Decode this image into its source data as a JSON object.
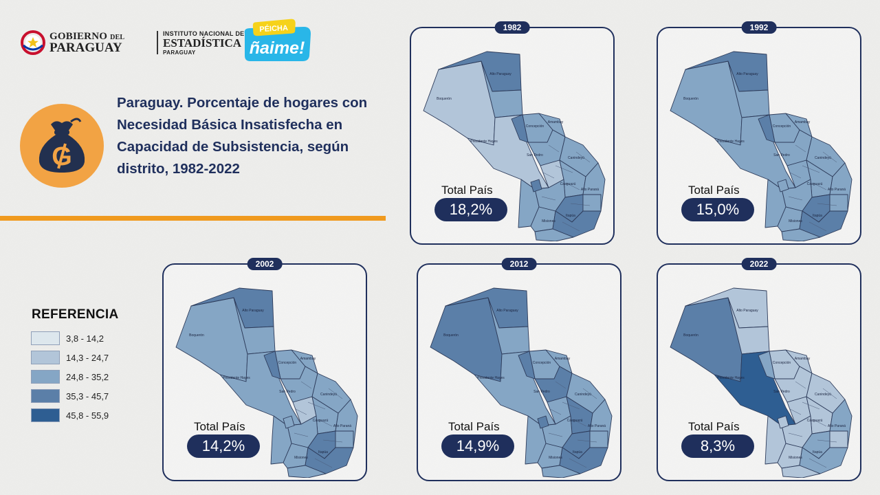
{
  "header": {
    "gov_line1": "GOBIERNO",
    "gov_line1_small": "DEL",
    "gov_line2": "PARAGUAY",
    "ine_line1": "INSTITUTO NACIONAL DE",
    "ine_line2": "ESTADÍSTICA",
    "ine_line3": "PARAGUAY",
    "campaign_top": "PÉICHA",
    "campaign_main": "ñaime!"
  },
  "title": "Paraguay. Porcentaje de hogares con Necesidad Básica Insatisfecha en Capacidad de Subsistencia, según distrito, 1982-2022",
  "legend": {
    "title": "REFERENCIA",
    "items": [
      {
        "label": "3,8 - 14,2",
        "color": "#dde7ed"
      },
      {
        "label": "14,3 - 24,7",
        "color": "#b2c5d9"
      },
      {
        "label": "24,8 - 35,2",
        "color": "#85a6c5"
      },
      {
        "label": "35,3 - 45,7",
        "color": "#5b7fa8"
      },
      {
        "label": "45,8 - 55,9",
        "color": "#2e5e92"
      }
    ]
  },
  "total_label": "Total País",
  "panels": [
    {
      "year": "1982",
      "total": "18,2%",
      "classes": [
        1,
        3,
        2,
        1,
        2,
        3,
        2,
        2,
        2,
        1,
        2,
        2,
        2,
        3,
        2,
        2,
        3,
        2,
        3,
        2
      ],
      "dept_labels": [
        "Boquerón",
        "Alto Paraguay",
        "Presidente Hayes",
        "Concepción",
        "Amambay",
        "San Pedro",
        "Canindeyú",
        "Caaguazú",
        "Alto Paraná",
        "Itapúa",
        "Misiones"
      ]
    },
    {
      "year": "1992",
      "total": "15,0%",
      "classes": [
        2,
        3,
        2,
        2,
        2,
        3,
        2,
        2,
        2,
        2,
        2,
        2,
        2,
        3,
        2,
        2,
        3,
        2,
        2,
        2
      ],
      "dept_labels": [
        "Boquerón",
        "Alto Paraguay",
        "Presidente Hayes",
        "Concepción",
        "Amambay",
        "San Pedro",
        "Canindeyú",
        "Caaguazú",
        "Alto Paraná",
        "Itapúa",
        "Misiones"
      ]
    },
    {
      "year": "2002",
      "total": "14,2%",
      "classes": [
        2,
        3,
        2,
        2,
        2,
        3,
        2,
        2,
        2,
        1,
        2,
        2,
        2,
        3,
        2,
        2,
        3,
        2,
        2,
        2
      ],
      "dept_labels": [
        "Boquerón",
        "Alto Paraguay",
        "Presidente Hayes",
        "Concepción",
        "Amambay",
        "San Pedro",
        "Canindeyú",
        "Caaguazú",
        "Alto Paraná",
        "Itapúa",
        "Misiones"
      ]
    },
    {
      "year": "2012",
      "total": "14,9%",
      "classes": [
        3,
        3,
        2,
        2,
        2,
        3,
        2,
        3,
        2,
        2,
        3,
        2,
        2,
        3,
        2,
        2,
        3,
        2,
        3,
        2
      ],
      "dept_labels": [
        "Boquerón",
        "Alto Paraguay",
        "Presidente Hayes",
        "Concepción",
        "Amambay",
        "San Pedro",
        "Canindeyú",
        "Caaguazú",
        "Alto Paraná",
        "Itapúa",
        "Misiones"
      ]
    },
    {
      "year": "2022",
      "total": "8,3%",
      "classes": [
        3,
        1,
        1,
        4,
        1,
        2,
        1,
        1,
        1,
        1,
        1,
        2,
        1,
        2,
        1,
        1,
        2,
        1,
        1,
        1
      ],
      "dept_labels": [
        "Boquerón",
        "Alto Paraguay",
        "Presidente Hayes",
        "Concepción",
        "Amambay",
        "San Pedro",
        "Canindeyú",
        "Caaguazú",
        "Alto Paraná",
        "Itapúa",
        "Misiones"
      ]
    }
  ],
  "colors": {
    "navy": "#1f2f5c",
    "orange": "#f09a1e",
    "coin_bg": "#f2a344",
    "bag": "#22304f"
  }
}
